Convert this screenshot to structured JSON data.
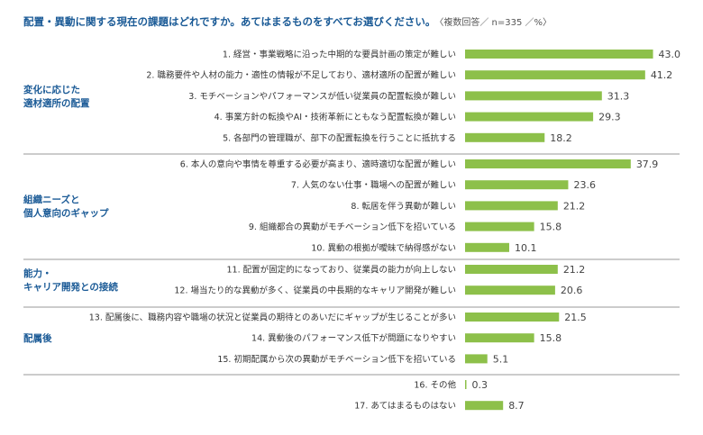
{
  "title": "配置・異動に関する現在の課題はどれですか。あてはまるものをすべてお選びください。",
  "note": "〈複数回答／ n=335 ／%〉",
  "colors": {
    "bar": "#8dc04a",
    "group_label": "#1a5a96",
    "rule": "#9a9a9a",
    "text": "#333333"
  },
  "chart_data": {
    "type": "bar",
    "orientation": "horizontal",
    "unit": "%",
    "groups": [
      {
        "name": [
          "変化に応じた",
          "適材適所の配置"
        ],
        "items": [
          {
            "label": "1. 経営・事業戦略に沿った中期的な要員計画の策定が難しい",
            "value": 43.0
          },
          {
            "label": "2. 職務要件や人材の能力・適性の情報が不足しており、適材適所の配置が難しい",
            "value": 41.2
          },
          {
            "label": "3. モチベーションやパフォーマンスが低い従業員の配置転換が難しい",
            "value": 31.3
          },
          {
            "label": "4. 事業方針の転換やAI・技術革新にともなう配置転換が難しい",
            "value": 29.3
          },
          {
            "label": "5. 各部門の管理職が、部下の配置転換を行うことに抵抗する",
            "value": 18.2
          }
        ]
      },
      {
        "name": [
          "組織ニーズと",
          "個人意向のギャップ"
        ],
        "items": [
          {
            "label": "6. 本人の意向や事情を尊重する必要が高まり、適時適切な配置が難しい",
            "value": 37.9
          },
          {
            "label": "7. 人気のない仕事・職場への配置が難しい",
            "value": 23.6
          },
          {
            "label": "8. 転居を伴う異動が難しい",
            "value": 21.2
          },
          {
            "label": "9. 組織都合の異動がモチベーション低下を招いている",
            "value": 15.8
          },
          {
            "label": "10. 異動の根拠が曖昧で納得感がない",
            "value": 10.1
          }
        ]
      },
      {
        "name": [
          "能力・",
          "キャリア開発との接続"
        ],
        "items": [
          {
            "label": "11. 配置が固定的になっており、従業員の能力が向上しない",
            "value": 21.2
          },
          {
            "label": "12. 場当たり的な異動が多く、従業員の中長期的なキャリア開発が難しい",
            "value": 20.6
          }
        ]
      },
      {
        "name": [
          "配属後"
        ],
        "items": [
          {
            "label": "13. 配属後に、職務内容や職場の状況と従業員の期待とのあいだにギャップが生じることが多い",
            "value": 21.5
          },
          {
            "label": "14. 異動後のパフォーマンス低下が問題になりやすい",
            "value": 15.8
          },
          {
            "label": "15. 初期配属から次の異動がモチベーション低下を招いている",
            "value": 5.1
          }
        ]
      },
      {
        "name": [],
        "items": [
          {
            "label": "16. その他",
            "value": 0.3
          },
          {
            "label": "17. あてはまるものはない",
            "value": 8.7
          }
        ]
      }
    ]
  }
}
